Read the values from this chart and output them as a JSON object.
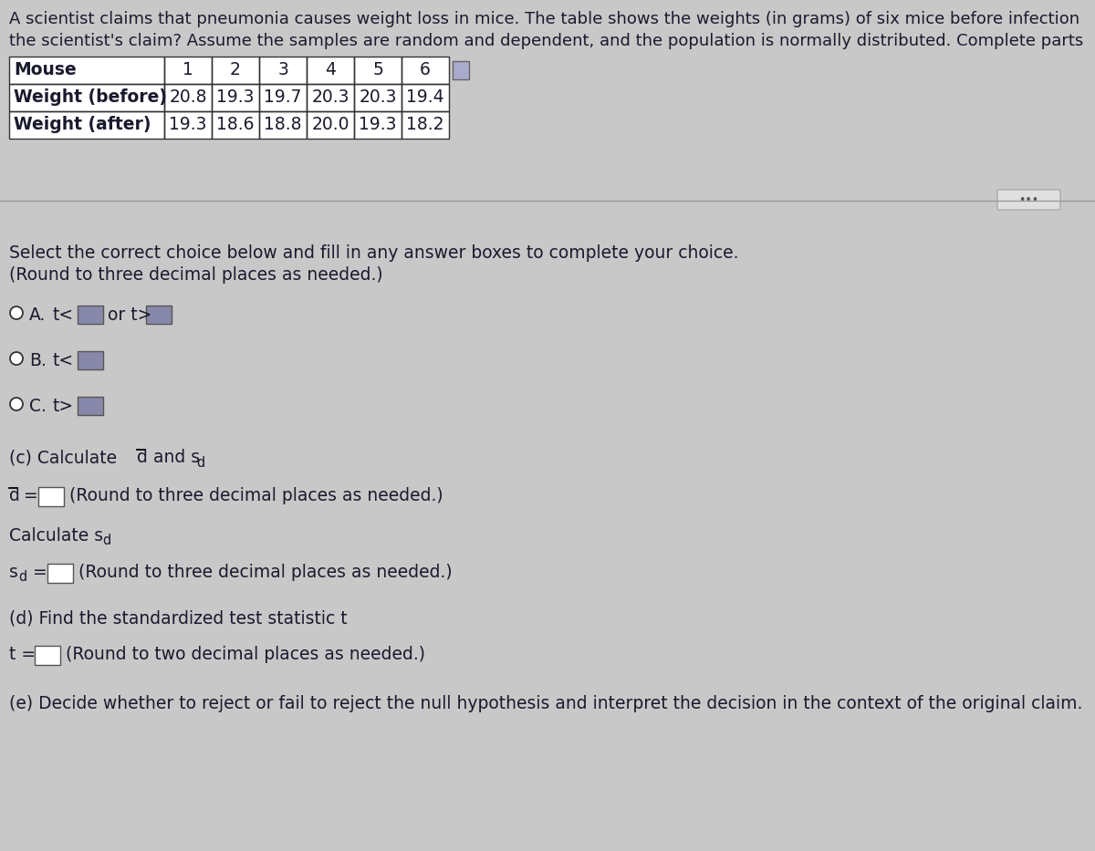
{
  "bg_color": "#c8c8c8",
  "text_color": "#1a1a2e",
  "title_lines": [
    "A scientist claims that pneumonia causes weight loss in mice. The table shows the weights (in grams) of six mice before infection",
    "the scientist's claim? Assume the samples are random and dependent, and the population is normally distributed. Complete parts"
  ],
  "table_headers": [
    "Mouse",
    "1",
    "2",
    "3",
    "4",
    "5",
    "6"
  ],
  "table_row1_label": "Weight (before)",
  "table_row1_values": [
    "20.8",
    "19.3",
    "19.7",
    "20.3",
    "20.3",
    "19.4"
  ],
  "table_row2_label": "Weight (after)",
  "table_row2_values": [
    "19.3",
    "18.6",
    "18.8",
    "20.0",
    "19.3",
    "18.2"
  ],
  "section_select": "Select the correct choice below and fill in any answer boxes to complete your choice.",
  "section_round3": "(Round to three decimal places as needed.)",
  "part_d_header": "(d) Find the standardized test statistic t",
  "part_d_round": "(Round to two decimal places as needed.)",
  "part_e": "(e) Decide whether to reject or fail to reject the null hypothesis and interpret the decision in the context of the original claim."
}
